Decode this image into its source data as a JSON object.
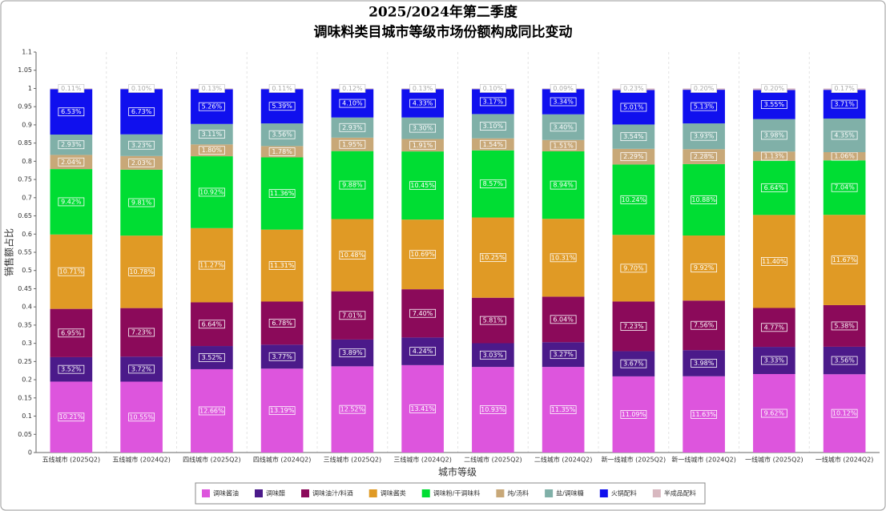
{
  "chart_data": {
    "type": "stacked_bar",
    "title": "2025/2024年第二季度",
    "subtitle": "调味料类目城市等级市场份额构成同比变动",
    "x_label": "城市等级",
    "y_label": "销售额占比",
    "categories": [
      "五线城市 (2025Q2)",
      "五线城市 (2024Q2)",
      "四线城市 (2025Q2)",
      "四线城市 (2024Q2)",
      "三线城市 (2025Q2)",
      "三线城市 (2024Q2)",
      "二线城市 (2025Q2)",
      "二线城市 (2024Q2)",
      "新一线城市 (2025Q2)",
      "新一线城市 (2024Q2)",
      "一线城市 (2025Q2)",
      "一线城市 (2024Q2)"
    ],
    "ylim": [
      0,
      1.1
    ],
    "yticks": [
      0,
      0.05,
      0.1,
      0.15,
      0.2,
      0.25,
      0.3,
      0.35,
      0.4,
      0.45,
      0.5,
      0.55,
      0.6,
      0.65,
      0.7,
      0.75,
      0.8,
      0.85,
      0.9,
      0.95,
      1,
      1.05,
      1.1
    ],
    "series": [
      {
        "name": "调味酱油",
        "color": "#dd55dd",
        "values": [
          0.1948,
          0.1947,
          0.2289,
          0.2304,
          0.2368,
          0.2401,
          0.2351,
          0.2352,
          0.2092,
          0.2095,
          0.2156,
          0.215
        ],
        "value_labels": [
          "10.21%",
          "10.55%",
          "12.66%",
          "13.19%",
          "12.52%",
          "13.41%",
          "10.93%",
          "11.35%",
          "11.09%",
          "11.63%",
          "9.62%",
          "10.12%"
        ]
      },
      {
        "name": "调味醋",
        "color": "#4b1a8a",
        "values": [
          0.0672,
          0.0687,
          0.0636,
          0.0659,
          0.0736,
          0.0759,
          0.0652,
          0.0678,
          0.0692,
          0.0717,
          0.0746,
          0.0756
        ],
        "value_labels": [
          "3.52%",
          "3.72%",
          "3.52%",
          "3.77%",
          "3.89%",
          "4.24%",
          "3.03%",
          "3.27%",
          "3.67%",
          "3.98%",
          "3.33%",
          "3.56%"
        ]
      },
      {
        "name": "调味油汁/料酒",
        "color": "#8b0a5a",
        "values": [
          0.1326,
          0.1334,
          0.1201,
          0.1184,
          0.1326,
          0.1325,
          0.1249,
          0.1252,
          0.1364,
          0.1362,
          0.1069,
          0.1143
        ],
        "value_labels": [
          "6.95%",
          "7.23%",
          "6.64%",
          "6.78%",
          "7.01%",
          "7.40%",
          "5.81%",
          "6.04%",
          "7.23%",
          "7.56%",
          "4.77%",
          "5.38%"
        ]
      },
      {
        "name": "调味酱类",
        "color": "#e09a25",
        "values": [
          0.2043,
          0.199,
          0.2038,
          0.1976,
          0.1982,
          0.1914,
          0.2204,
          0.2137,
          0.183,
          0.1787,
          0.2555,
          0.248
        ],
        "value_labels": [
          "10.71%",
          "10.78%",
          "11.27%",
          "11.31%",
          "10.48%",
          "10.69%",
          "10.25%",
          "10.31%",
          "9.70%",
          "9.92%",
          "11.40%",
          "11.67%"
        ]
      },
      {
        "name": "调味粉/干调味料",
        "color": "#00dd33",
        "values": [
          0.1797,
          0.1811,
          0.1974,
          0.1984,
          0.1868,
          0.1871,
          0.1843,
          0.1853,
          0.1932,
          0.196,
          0.1488,
          0.1496
        ],
        "value_labels": [
          "9.42%",
          "9.81%",
          "10.92%",
          "11.36%",
          "9.88%",
          "10.45%",
          "8.57%",
          "8.94%",
          "10.24%",
          "10.88%",
          "6.64%",
          "7.04%"
        ]
      },
      {
        "name": "炖/汤料",
        "color": "#c8a878",
        "values": [
          0.0389,
          0.0375,
          0.0325,
          0.0311,
          0.0369,
          0.0342,
          0.0331,
          0.0313,
          0.0432,
          0.0411,
          0.0253,
          0.0225
        ],
        "value_labels": [
          "2.04%",
          "2.03%",
          "1.80%",
          "1.78%",
          "1.95%",
          "1.91%",
          "1.54%",
          "1.51%",
          "2.29%",
          "2.28%",
          "1.13%",
          "1.06%"
        ]
      },
      {
        "name": "盐/调味糖",
        "color": "#80b0a8",
        "values": [
          0.0559,
          0.0596,
          0.0562,
          0.0622,
          0.0554,
          0.0591,
          0.0667,
          0.0705,
          0.0668,
          0.0708,
          0.0892,
          0.0924
        ],
        "value_labels": [
          "2.93%",
          "3.23%",
          "3.11%",
          "3.56%",
          "2.93%",
          "3.30%",
          "3.10%",
          "3.40%",
          "3.54%",
          "3.93%",
          "3.98%",
          "4.35%"
        ]
      },
      {
        "name": "火锅配料",
        "color": "#1010ee",
        "values": [
          0.1246,
          0.1242,
          0.0951,
          0.0941,
          0.0775,
          0.0775,
          0.0682,
          0.0692,
          0.0945,
          0.0924,
          0.0796,
          0.0788
        ],
        "value_labels": [
          "6.53%",
          "6.73%",
          "5.26%",
          "5.39%",
          "4.10%",
          "4.33%",
          "3.17%",
          "3.34%",
          "5.01%",
          "5.13%",
          "3.55%",
          "3.71%"
        ]
      },
      {
        "name": "半成品配料",
        "color": "#d8b8c0",
        "values": [
          0.0021,
          0.0018,
          0.0024,
          0.0019,
          0.0023,
          0.0023,
          0.0022,
          0.0019,
          0.0043,
          0.0036,
          0.0045,
          0.0036
        ],
        "value_labels": [
          "0.11%",
          "0.10%",
          "0.13%",
          "0.11%",
          "0.12%",
          "0.13%",
          "0.10%",
          "0.09%",
          "0.23%",
          "0.20%",
          "0.20%",
          "0.17%"
        ]
      }
    ]
  }
}
